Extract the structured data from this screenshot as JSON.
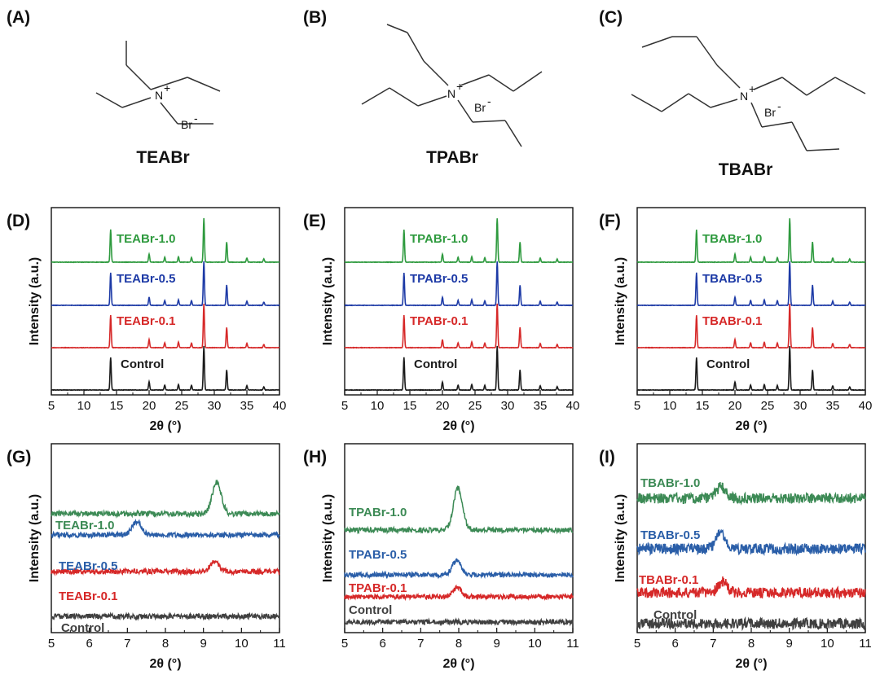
{
  "colors": {
    "control": "#1a1a1a",
    "s01": "#d62828",
    "s05": "#1d3aa6",
    "s10": "#2e9a3e",
    "s05_noisy": "#2a5ea8",
    "s10_noisy": "#3c8a55",
    "control_noisy": "#404040"
  },
  "structures": [
    {
      "panel": "(A)",
      "name": "TEABr",
      "cation": "N",
      "charge": "+",
      "anion": "Br",
      "anion_charge": "-"
    },
    {
      "panel": "(B)",
      "name": "TPABr",
      "cation": "N",
      "charge": "+",
      "anion": "Br",
      "anion_charge": "-"
    },
    {
      "panel": "(C)",
      "name": "TBABr",
      "cation": "N",
      "charge": "+",
      "anion": "Br",
      "anion_charge": "-"
    }
  ],
  "chart_data": [
    {
      "panel": "(D)",
      "type": "line",
      "xlabel": "2θ (°)",
      "ylabel": "Intensity (a.u.)",
      "xlim": [
        5,
        40
      ],
      "xticks": [
        5,
        10,
        15,
        20,
        25,
        30,
        35,
        40
      ],
      "grid": false,
      "peaks": [
        [
          14.1,
          1.0
        ],
        [
          20.0,
          0.25
        ],
        [
          22.4,
          0.15
        ],
        [
          24.5,
          0.17
        ],
        [
          26.5,
          0.14
        ],
        [
          28.4,
          1.35
        ],
        [
          31.9,
          0.62
        ],
        [
          35.0,
          0.13
        ],
        [
          37.6,
          0.1
        ]
      ],
      "series": [
        {
          "name": "Control",
          "color_key": "control"
        },
        {
          "name": "TEABr-0.1",
          "color_key": "s01"
        },
        {
          "name": "TEABr-0.5",
          "color_key": "s05"
        },
        {
          "name": "TEABr-1.0",
          "color_key": "s10"
        }
      ]
    },
    {
      "panel": "(E)",
      "type": "line",
      "xlabel": "2θ (°)",
      "ylabel": "Intensity (a.u.)",
      "xlim": [
        5,
        40
      ],
      "xticks": [
        5,
        10,
        15,
        20,
        25,
        30,
        35,
        40
      ],
      "grid": false,
      "peaks": [
        [
          14.1,
          1.0
        ],
        [
          20.0,
          0.25
        ],
        [
          22.4,
          0.15
        ],
        [
          24.5,
          0.17
        ],
        [
          26.5,
          0.14
        ],
        [
          28.4,
          1.35
        ],
        [
          31.9,
          0.62
        ],
        [
          35.0,
          0.13
        ],
        [
          37.6,
          0.1
        ]
      ],
      "series": [
        {
          "name": "Control",
          "color_key": "control"
        },
        {
          "name": "TPABr-0.1",
          "color_key": "s01"
        },
        {
          "name": "TPABr-0.5",
          "color_key": "s05"
        },
        {
          "name": "TPABr-1.0",
          "color_key": "s10"
        }
      ]
    },
    {
      "panel": "(F)",
      "type": "line",
      "xlabel": "2θ (°)",
      "ylabel": "Intensity (a.u.)",
      "xlim": [
        5,
        40
      ],
      "xticks": [
        5,
        10,
        15,
        20,
        25,
        30,
        35,
        40
      ],
      "grid": false,
      "peaks": [
        [
          14.1,
          1.0
        ],
        [
          20.0,
          0.25
        ],
        [
          22.4,
          0.15
        ],
        [
          24.5,
          0.17
        ],
        [
          26.5,
          0.14
        ],
        [
          28.4,
          1.35
        ],
        [
          31.9,
          0.62
        ],
        [
          35.0,
          0.13
        ],
        [
          37.6,
          0.1
        ]
      ],
      "series": [
        {
          "name": "Control",
          "color_key": "control"
        },
        {
          "name": "TBABr-0.1",
          "color_key": "s01"
        },
        {
          "name": "TBABr-0.5",
          "color_key": "s05"
        },
        {
          "name": "TBABr-1.0",
          "color_key": "s10"
        }
      ]
    },
    {
      "panel": "(G)",
      "type": "line",
      "xlabel": "2θ (°)",
      "ylabel": "Intensity (a.u.)",
      "xlim": [
        5,
        11
      ],
      "xticks": [
        5,
        6,
        7,
        8,
        9,
        10,
        11
      ],
      "grid": false,
      "series": [
        {
          "name": "Control",
          "color_key": "control_noisy",
          "peak_x": null,
          "peak_height": 0
        },
        {
          "name": "TEABr-0.1",
          "color_key": "s01",
          "peak_x": 9.3,
          "peak_height": 0.55
        },
        {
          "name": "TEABr-0.5",
          "color_key": "s05_noisy",
          "peak_x": 7.25,
          "peak_height": 0.75
        },
        {
          "name": "TEABr-1.0",
          "color_key": "s10_noisy",
          "peak_x": 9.35,
          "peak_height": 1.75
        }
      ]
    },
    {
      "panel": "(H)",
      "type": "line",
      "xlabel": "2θ (°)",
      "ylabel": "Intensity (a.u.)",
      "xlim": [
        5,
        11
      ],
      "xticks": [
        5,
        6,
        7,
        8,
        9,
        10,
        11
      ],
      "grid": false,
      "series": [
        {
          "name": "Control",
          "color_key": "control_noisy",
          "peak_x": null,
          "peak_height": 0
        },
        {
          "name": "TPABr-0.1",
          "color_key": "s01",
          "peak_x": 7.95,
          "peak_height": 0.4
        },
        {
          "name": "TPABr-0.5",
          "color_key": "s05_noisy",
          "peak_x": 7.95,
          "peak_height": 0.65
        },
        {
          "name": "TPABr-1.0",
          "color_key": "s10_noisy",
          "peak_x": 7.98,
          "peak_height": 1.9
        }
      ]
    },
    {
      "panel": "(I)",
      "type": "line",
      "xlabel": "2θ (°)",
      "ylabel": "Intensity (a.u.)",
      "xlim": [
        5,
        11
      ],
      "xticks": [
        5,
        6,
        7,
        8,
        9,
        10,
        11
      ],
      "grid": false,
      "series": [
        {
          "name": "Control",
          "color_key": "control_noisy",
          "peak_x": null,
          "peak_height": 0
        },
        {
          "name": "TBABr-0.1",
          "color_key": "s01",
          "peak_x": 7.25,
          "peak_height": 0.7
        },
        {
          "name": "TBABr-0.5",
          "color_key": "s05_noisy",
          "peak_x": 7.2,
          "peak_height": 1.0
        },
        {
          "name": "TBABr-1.0",
          "color_key": "s10_noisy",
          "peak_x": 7.2,
          "peak_height": 0.7
        }
      ]
    }
  ]
}
